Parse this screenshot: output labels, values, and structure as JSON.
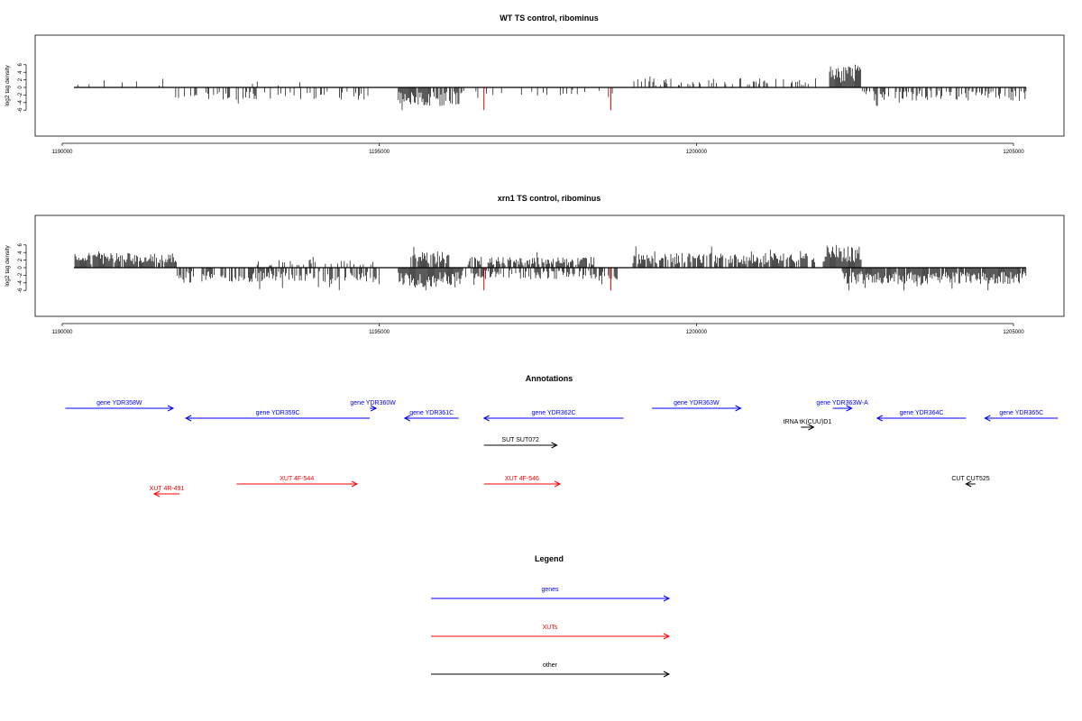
{
  "chart_data": [
    {
      "type": "bar",
      "title": "WT TS control, ribominus",
      "ylabel": "log2 tag density",
      "xlim": [
        1190000,
        1205000
      ],
      "ylim": [
        -6,
        6
      ],
      "x_ticks": [
        "1190000",
        "1195000",
        "1200000",
        "1205000"
      ],
      "y_ticks": [
        "6",
        "4",
        "2",
        "0",
        "-2",
        "-4",
        "-6"
      ],
      "colors": {
        "bars": "#000000",
        "highlight": "#e00000",
        "frame": "#000000"
      },
      "density": {
        "positive_regions": [
          {
            "start": 1190200,
            "end": 1191800,
            "level": 1.8,
            "density": 0.08
          },
          {
            "start": 1193000,
            "end": 1193800,
            "level": 1.5,
            "density": 0.06
          },
          {
            "start": 1199000,
            "end": 1201900,
            "level": 2.2,
            "density": 0.3
          },
          {
            "start": 1202100,
            "end": 1202600,
            "level": 5.2,
            "density": 1.0
          }
        ],
        "negative_regions": [
          {
            "start": 1191700,
            "end": 1194900,
            "level": 3.0,
            "density": 0.25
          },
          {
            "start": 1195300,
            "end": 1196300,
            "level": 4.5,
            "density": 0.9
          },
          {
            "start": 1196300,
            "end": 1198800,
            "level": 2.0,
            "density": 0.15
          },
          {
            "start": 1202600,
            "end": 1205200,
            "level": 3.2,
            "density": 0.5
          }
        ]
      },
      "highlights": [
        {
          "x": 1196650,
          "value": -6
        },
        {
          "x": 1198650,
          "value": -6
        }
      ]
    },
    {
      "type": "bar",
      "title": "xrn1 TS control, ribominus",
      "ylabel": "log2 tag density",
      "xlim": [
        1190000,
        1205000
      ],
      "ylim": [
        -6,
        6
      ],
      "x_ticks": [
        "1190000",
        "1195000",
        "1200000",
        "1205000"
      ],
      "y_ticks": [
        "6",
        "4",
        "2",
        "0",
        "-2",
        "-4",
        "-6"
      ],
      "colors": {
        "bars": "#000000",
        "highlight": "#e00000",
        "frame": "#000000"
      },
      "density": {
        "positive_regions": [
          {
            "start": 1190200,
            "end": 1191800,
            "level": 3.5,
            "density": 0.9
          },
          {
            "start": 1193000,
            "end": 1195000,
            "level": 1.8,
            "density": 0.2
          },
          {
            "start": 1195500,
            "end": 1196100,
            "level": 3.8,
            "density": 0.9
          },
          {
            "start": 1196400,
            "end": 1198400,
            "level": 2.6,
            "density": 0.7
          },
          {
            "start": 1199000,
            "end": 1201900,
            "level": 3.5,
            "density": 0.8
          },
          {
            "start": 1202000,
            "end": 1202600,
            "level": 5.5,
            "density": 1.0
          }
        ],
        "negative_regions": [
          {
            "start": 1191800,
            "end": 1195000,
            "level": 3.6,
            "density": 0.6
          },
          {
            "start": 1195300,
            "end": 1196300,
            "level": 4.8,
            "density": 1.0
          },
          {
            "start": 1196300,
            "end": 1198800,
            "level": 2.8,
            "density": 0.5
          },
          {
            "start": 1202300,
            "end": 1205200,
            "level": 4.0,
            "density": 0.95
          }
        ]
      },
      "highlights": [
        {
          "x": 1196650,
          "value": -6
        },
        {
          "x": 1198650,
          "value": -6
        }
      ]
    },
    {
      "type": "table",
      "title": "Annotations",
      "features": [
        {
          "label": "gene YDR358W",
          "start": 1190050,
          "end": 1191750,
          "strand": "+",
          "kind": "gene",
          "row": 0
        },
        {
          "label": "gene YDR359C",
          "start": 1191950,
          "end": 1194850,
          "strand": "-",
          "kind": "gene",
          "row": 1
        },
        {
          "label": "gene YDR360W",
          "start": 1194850,
          "end": 1194950,
          "strand": "+",
          "kind": "gene",
          "row": 0
        },
        {
          "label": "gene YDR361C",
          "start": 1195400,
          "end": 1196250,
          "strand": "-",
          "kind": "gene",
          "row": 1
        },
        {
          "label": "gene YDR362C",
          "start": 1196650,
          "end": 1198850,
          "strand": "-",
          "kind": "gene",
          "row": 1
        },
        {
          "label": "gene YDR363W",
          "start": 1199300,
          "end": 1200700,
          "strand": "+",
          "kind": "gene",
          "row": 0
        },
        {
          "label": "gene YDR363W-A",
          "start": 1202150,
          "end": 1202450,
          "strand": "+",
          "kind": "gene",
          "row": 0
        },
        {
          "label": "gene YDR364C",
          "start": 1202850,
          "end": 1204250,
          "strand": "-",
          "kind": "gene",
          "row": 1
        },
        {
          "label": "gene YDR365C",
          "start": 1204550,
          "end": 1205700,
          "strand": "-",
          "kind": "gene",
          "row": 1
        },
        {
          "label": "tRNA tK(CUU)D1",
          "start": 1201650,
          "end": 1201850,
          "strand": "+",
          "kind": "other",
          "row": 2
        },
        {
          "label": "SUT SUT072",
          "start": 1196650,
          "end": 1197800,
          "strand": "+",
          "kind": "other",
          "row": 3
        },
        {
          "label": "XUT 4F-544",
          "start": 1192750,
          "end": 1194650,
          "strand": "+",
          "kind": "xut",
          "row": 4
        },
        {
          "label": "XUT 4F-546",
          "start": 1196650,
          "end": 1197850,
          "strand": "+",
          "kind": "xut",
          "row": 4
        },
        {
          "label": "XUT 4R-491",
          "start": 1191450,
          "end": 1191850,
          "strand": "-",
          "kind": "xut",
          "row": 5
        },
        {
          "label": "CUT CUT525",
          "start": 1204250,
          "end": 1204400,
          "strand": "-",
          "kind": "other",
          "row": 4
        }
      ]
    }
  ],
  "legend": {
    "title": "Legend",
    "items": [
      {
        "label": "genes",
        "color": "#0000ff"
      },
      {
        "label": "XUTs",
        "color": "#ff0000"
      },
      {
        "label": "other",
        "color": "#000000"
      }
    ]
  },
  "colors": {
    "gene": "#0000ff",
    "xut": "#ff0000",
    "other": "#000000"
  }
}
